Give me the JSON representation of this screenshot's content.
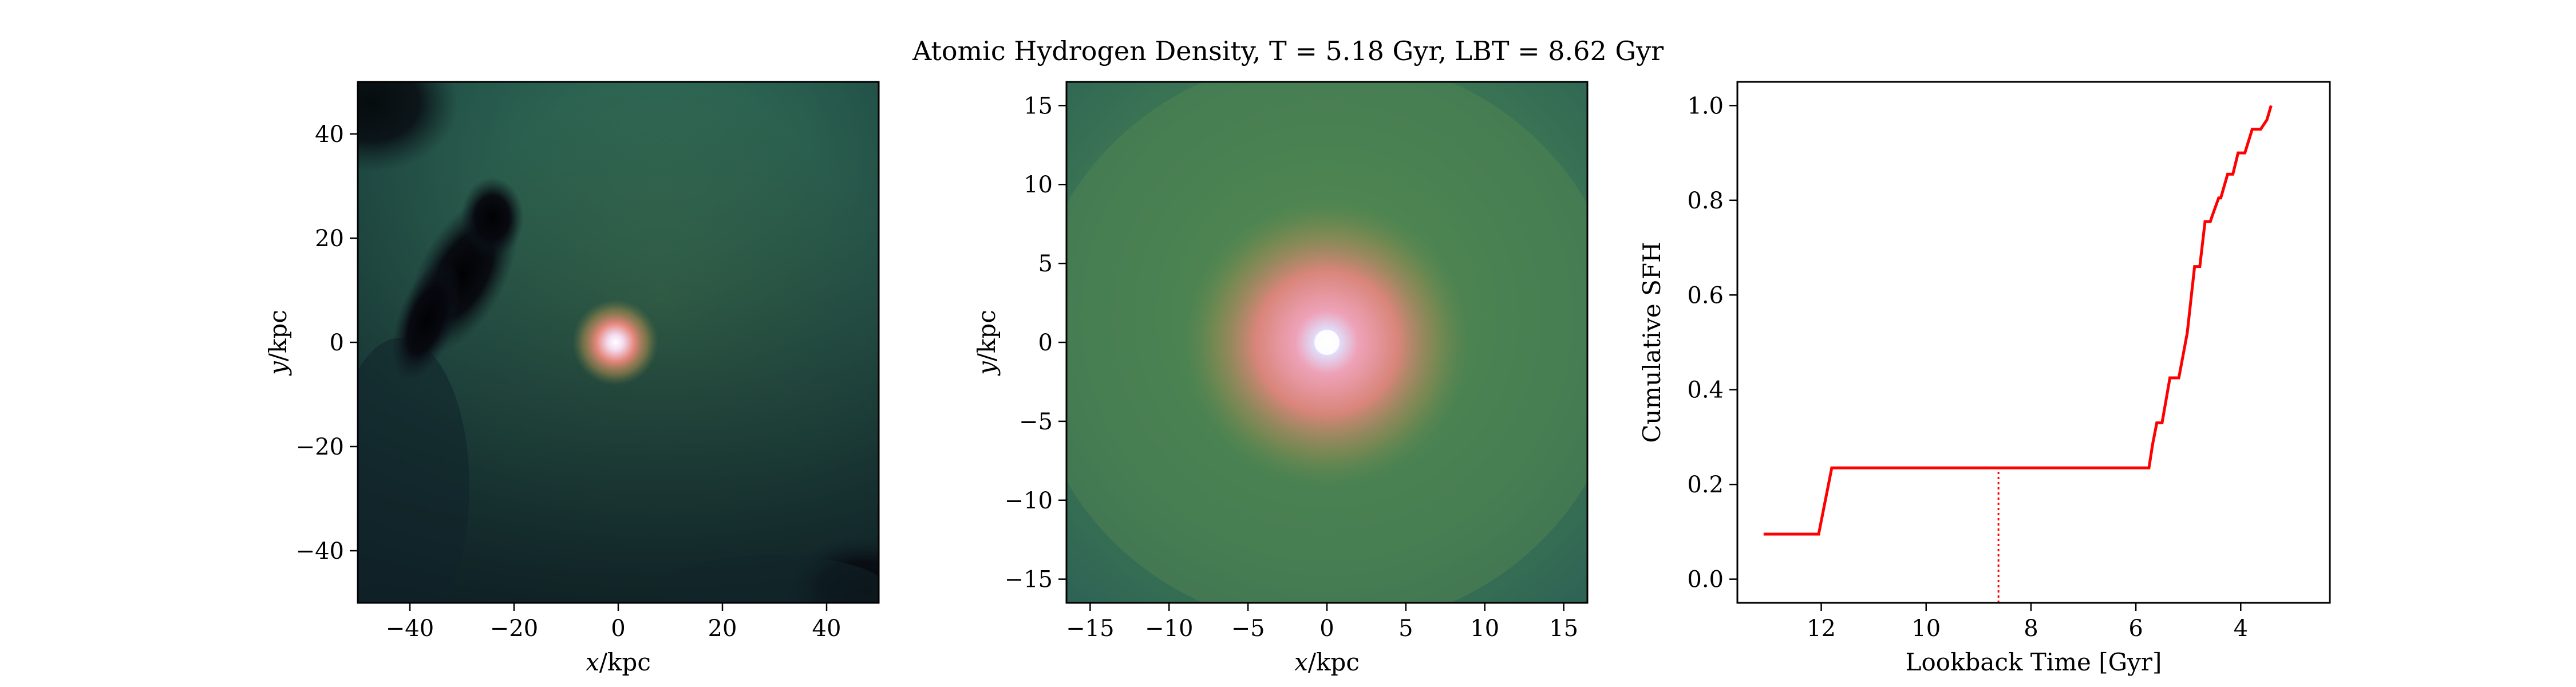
{
  "figure_title": "Atomic Hydrogen Density, T = 5.18 Gyr, LBT = 8.62 Gyr",
  "colors": {
    "sfh_line": "#ff0000",
    "axes": "#000000"
  },
  "chart_data": [
    {
      "type": "heatmap",
      "title": "",
      "xlabel": "x/kpc",
      "ylabel": "y/kpc",
      "xlim": [
        -50,
        50
      ],
      "ylim": [
        -50,
        50
      ],
      "xticks": [
        -40,
        -20,
        0,
        20,
        40
      ],
      "yticks": [
        -40,
        -20,
        0,
        20,
        40
      ],
      "xticklabels": [
        "−40",
        "−20",
        "0",
        "20",
        "40"
      ],
      "yticklabels": [
        "−40",
        "−20",
        "0",
        "20",
        "40"
      ],
      "colormap": "dark teal to green to pink to white (cubehelix-like)",
      "features": [
        {
          "kind": "bright_core",
          "x": 0,
          "y": 0
        },
        {
          "kind": "low_density_void",
          "x": -33,
          "y": 18
        }
      ]
    },
    {
      "type": "heatmap",
      "title": "",
      "xlabel": "x/kpc",
      "ylabel": "y/kpc",
      "xlim": [
        -16.5,
        16.5
      ],
      "ylim": [
        -16.5,
        16.5
      ],
      "xticks": [
        -15,
        -10,
        -5,
        0,
        5,
        10,
        15
      ],
      "yticks": [
        -15,
        -10,
        -5,
        0,
        5,
        10,
        15
      ],
      "xticklabels": [
        "−15",
        "−10",
        "−5",
        "0",
        "5",
        "10",
        "15"
      ],
      "yticklabels": [
        "−15",
        "−10",
        "−5",
        "0",
        "5",
        "10",
        "15"
      ],
      "colormap": "dark teal to green to pink to white (cubehelix-like)",
      "features": [
        {
          "kind": "bright_core",
          "x": 0,
          "y": 0
        }
      ]
    },
    {
      "type": "line",
      "title": "",
      "xlabel": "Lookback Time [Gyr]",
      "ylabel": "Cumulative SFH",
      "xlim": [
        13.6,
        2.3
      ],
      "ylim": [
        -0.05,
        1.05
      ],
      "xticks": [
        12,
        10,
        8,
        6,
        4
      ],
      "yticks": [
        0.0,
        0.2,
        0.4,
        0.6,
        0.8,
        1.0
      ],
      "xticklabels": [
        "12",
        "10",
        "8",
        "6",
        "4"
      ],
      "yticklabels": [
        "0.0",
        "0.2",
        "0.4",
        "0.6",
        "0.8",
        "1.0"
      ],
      "series": [
        {
          "color": "#ff0000",
          "x": [
            13.1,
            12.05,
            11.8,
            5.75,
            5.68,
            5.6,
            5.5,
            5.35,
            5.18,
            5.02,
            4.88,
            4.78,
            4.68,
            4.58,
            4.55,
            4.42,
            4.38,
            4.25,
            4.15,
            4.05,
            3.92,
            3.78,
            3.62,
            3.5,
            3.42
          ],
          "y": [
            0.095,
            0.095,
            0.235,
            0.235,
            0.285,
            0.33,
            0.33,
            0.425,
            0.425,
            0.52,
            0.66,
            0.66,
            0.755,
            0.755,
            0.765,
            0.805,
            0.805,
            0.855,
            0.855,
            0.9,
            0.9,
            0.95,
            0.95,
            0.97,
            1.0
          ]
        }
      ],
      "marker_line": {
        "x": 8.62,
        "y_top": 0.235,
        "style": "dotted"
      }
    }
  ]
}
